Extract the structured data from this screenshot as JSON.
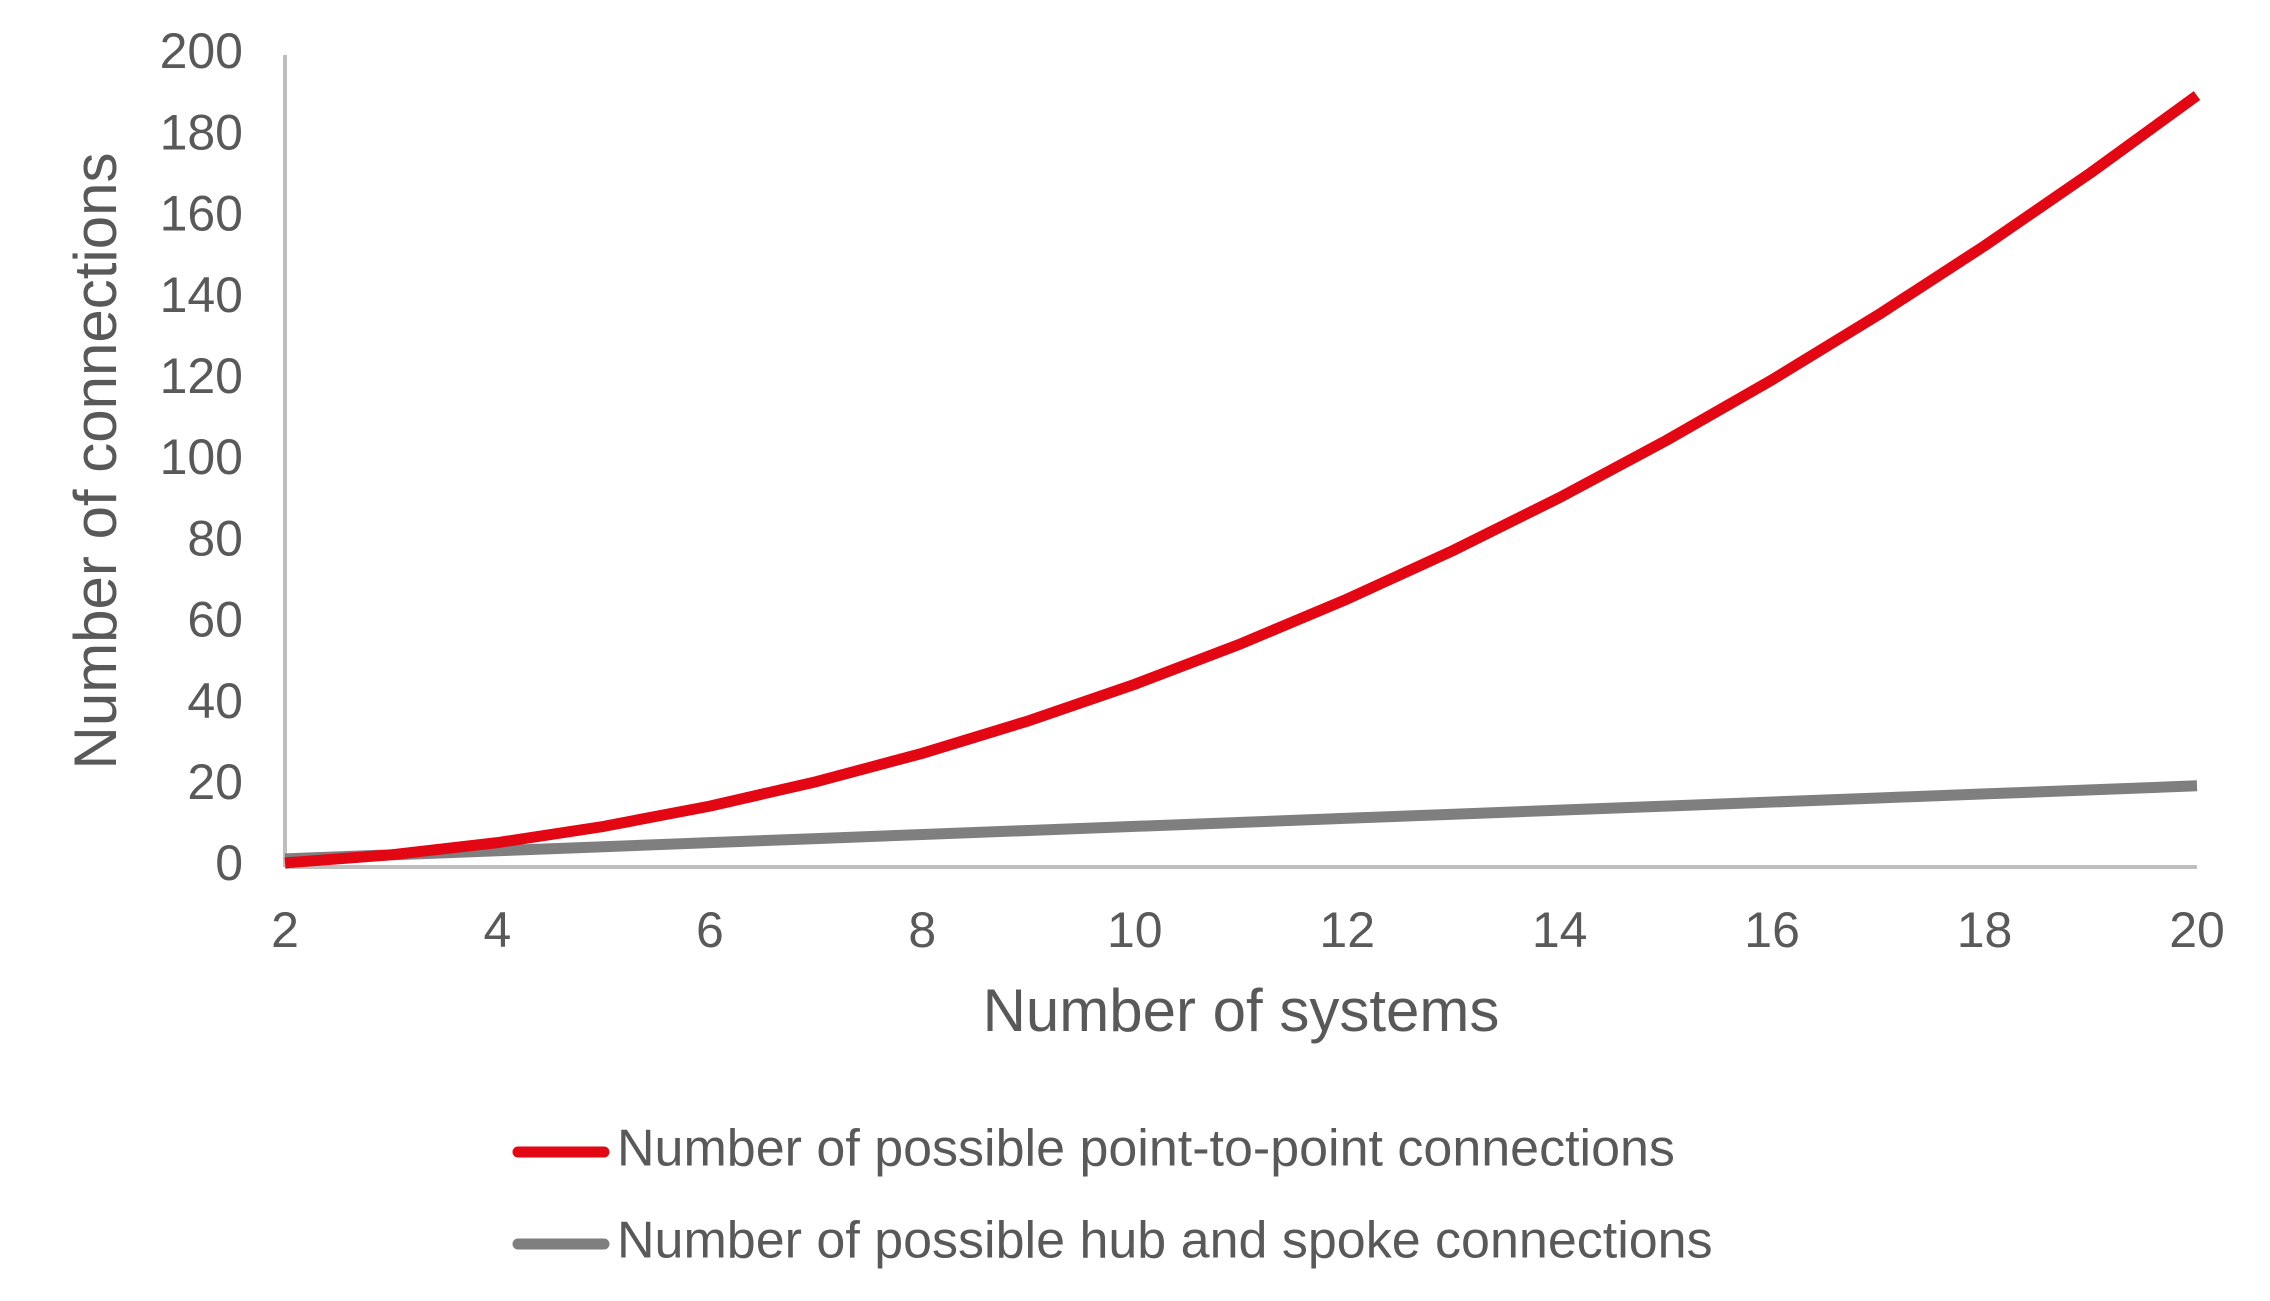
{
  "chart_data": {
    "type": "line",
    "x_label": "Number of systems",
    "y_label": "Number of connections",
    "x": [
      2,
      3,
      4,
      5,
      6,
      7,
      8,
      9,
      10,
      11,
      12,
      13,
      14,
      15,
      16,
      17,
      18,
      19,
      20
    ],
    "series": [
      {
        "name": "Number of possible point-to-point connections",
        "color": "#e30613",
        "values": [
          1,
          3,
          6,
          10,
          15,
          21,
          28,
          36,
          45,
          55,
          66,
          78,
          91,
          105,
          120,
          136,
          153,
          171,
          190
        ]
      },
      {
        "name": "Number of possible hub and spoke connections",
        "color": "#7f7f7f",
        "values": [
          2,
          3,
          4,
          5,
          6,
          7,
          8,
          9,
          10,
          11,
          12,
          13,
          14,
          15,
          16,
          17,
          18,
          19,
          20
        ]
      }
    ],
    "xlim": [
      2,
      20
    ],
    "xticks": [
      2,
      4,
      6,
      8,
      10,
      12,
      14,
      16,
      18,
      20
    ],
    "ylim": [
      0,
      200
    ],
    "yticks": [
      0,
      20,
      40,
      60,
      80,
      100,
      120,
      140,
      160,
      180,
      200
    ],
    "grid": false,
    "legend": "bottom"
  }
}
